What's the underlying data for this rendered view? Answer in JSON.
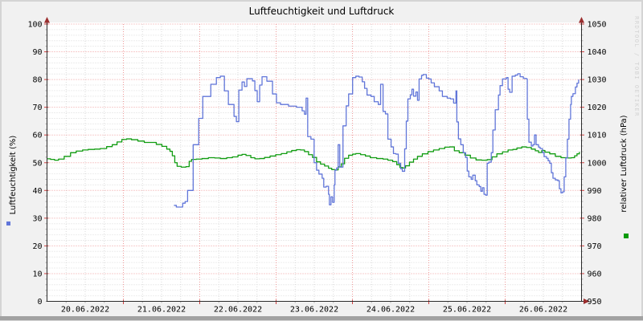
{
  "page": {
    "background_color": "#f1f1f1",
    "frame_color": "#d4d4d4",
    "bottom_bar_color": "#a2a2a2"
  },
  "watermark": "RRDTOOL / TOBI OETIKER",
  "legend": [
    {
      "series": "Luftfeuchtigkeit",
      "marker_color": "#6176d9",
      "position": "left-margin"
    },
    {
      "series": "relativer Luftdruck",
      "marker_color": "#0a9a0a",
      "position": "right-margin"
    }
  ],
  "chart_data": {
    "type": "line",
    "title": "Luftfeuchtigkeit und Luftdruck",
    "grid": {
      "major": true,
      "minor": true,
      "legend_position": "margins"
    },
    "colors": {
      "canvas": "#ffffff",
      "grid_minor": "#dadada",
      "grid_major": "#ef9a9a",
      "axis": "#2b2b2b",
      "arrow": "#9b2d2d",
      "tick_major": "#d04040",
      "tick_minor": "#b2b2b2",
      "text": "#000000"
    },
    "x_axis": {
      "labels": [
        "20.06.2022",
        "21.06.2022",
        "22.06.2022",
        "23.06.2022",
        "24.06.2022",
        "25.06.2022",
        "26.06.2022"
      ],
      "days": 7,
      "t_unit": "days since 20.06.2022 00:00",
      "major_tick_days": 1,
      "minor_tick_hours": 6
    },
    "y_left": {
      "label": "Luftfeuchtigkeit (%)",
      "min": 0,
      "max": 100,
      "tick_step": 10,
      "minor_step": 2,
      "ticks": [
        0,
        10,
        20,
        30,
        40,
        50,
        60,
        70,
        80,
        90,
        100
      ]
    },
    "y_right": {
      "label": "relativer Luftdruck (hPa)",
      "min": 950,
      "max": 1050,
      "tick_step": 10,
      "minor_step": 2,
      "ticks": [
        950,
        960,
        970,
        980,
        990,
        1000,
        1010,
        1020,
        1030,
        1040,
        1050
      ]
    },
    "series": [
      {
        "id": "luftfeuchtigkeit",
        "name": "Luftfeuchtigkeit",
        "axis": "left",
        "unit": "%",
        "color": "#6176d9",
        "points": [
          [
            1.662,
            34.6
          ],
          [
            1.694,
            34.0
          ],
          [
            1.777,
            35.4
          ],
          [
            1.809,
            36.0
          ],
          [
            1.841,
            40.0
          ],
          [
            1.914,
            56.5
          ],
          [
            1.987,
            66.0
          ],
          [
            2.04,
            73.9
          ],
          [
            2.145,
            78.3
          ],
          [
            2.218,
            80.7
          ],
          [
            2.27,
            81.2
          ],
          [
            2.323,
            75.9
          ],
          [
            2.375,
            71.0
          ],
          [
            2.449,
            66.7
          ],
          [
            2.48,
            64.8
          ],
          [
            2.512,
            76.2
          ],
          [
            2.554,
            79.1
          ],
          [
            2.585,
            77.5
          ],
          [
            2.617,
            80.3
          ],
          [
            2.69,
            79.5
          ],
          [
            2.722,
            76.0
          ],
          [
            2.753,
            72.0
          ],
          [
            2.785,
            78.0
          ],
          [
            2.816,
            81.0
          ],
          [
            2.879,
            79.4
          ],
          [
            2.953,
            74.8
          ],
          [
            3.005,
            71.6
          ],
          [
            3.058,
            71.0
          ],
          [
            3.163,
            70.4
          ],
          [
            3.267,
            70.0
          ],
          [
            3.341,
            68.7
          ],
          [
            3.372,
            67.5
          ],
          [
            3.393,
            73.3
          ],
          [
            3.414,
            59.4
          ],
          [
            3.456,
            58.5
          ],
          [
            3.498,
            50.0
          ],
          [
            3.53,
            47.3
          ],
          [
            3.561,
            45.9
          ],
          [
            3.603,
            44.4
          ],
          [
            3.624,
            41.2
          ],
          [
            3.656,
            41.5
          ],
          [
            3.687,
            38.6
          ],
          [
            3.698,
            34.8
          ],
          [
            3.719,
            37.7
          ],
          [
            3.74,
            35.7
          ],
          [
            3.761,
            42.0
          ],
          [
            3.771,
            47.3
          ],
          [
            3.792,
            48.1
          ],
          [
            3.813,
            56.5
          ],
          [
            3.834,
            48.4
          ],
          [
            3.876,
            63.3
          ],
          [
            3.918,
            70.5
          ],
          [
            3.95,
            74.8
          ],
          [
            4.002,
            80.7
          ],
          [
            4.044,
            81.2
          ],
          [
            4.086,
            80.9
          ],
          [
            4.128,
            79.2
          ],
          [
            4.159,
            76.8
          ],
          [
            4.191,
            74.4
          ],
          [
            4.243,
            73.9
          ],
          [
            4.285,
            72.0
          ],
          [
            4.338,
            71.0
          ],
          [
            4.369,
            78.3
          ],
          [
            4.401,
            68.5
          ],
          [
            4.432,
            67.6
          ],
          [
            4.464,
            58.5
          ],
          [
            4.506,
            55.7
          ],
          [
            4.537,
            53.3
          ],
          [
            4.569,
            53.1
          ],
          [
            4.6,
            49.8
          ],
          [
            4.632,
            47.8
          ],
          [
            4.653,
            46.9
          ],
          [
            4.684,
            55.0
          ],
          [
            4.705,
            65.0
          ],
          [
            4.726,
            73.0
          ],
          [
            4.758,
            74.5
          ],
          [
            4.779,
            76.5
          ],
          [
            4.8,
            74.0
          ],
          [
            4.831,
            75.5
          ],
          [
            4.852,
            72.5
          ],
          [
            4.873,
            80.2
          ],
          [
            4.905,
            81.5
          ],
          [
            4.926,
            81.8
          ],
          [
            4.968,
            80.5
          ],
          [
            5.0,
            80.2
          ],
          [
            5.031,
            78.8
          ],
          [
            5.073,
            77.4
          ],
          [
            5.105,
            77.4
          ],
          [
            5.136,
            75.9
          ],
          [
            5.178,
            73.9
          ],
          [
            5.241,
            73.3
          ],
          [
            5.283,
            73.0
          ],
          [
            5.325,
            71.5
          ],
          [
            5.356,
            75.9
          ],
          [
            5.367,
            64.7
          ],
          [
            5.388,
            58.6
          ],
          [
            5.419,
            56.5
          ],
          [
            5.451,
            53.6
          ],
          [
            5.482,
            51.9
          ],
          [
            5.503,
            47.0
          ],
          [
            5.524,
            44.9
          ],
          [
            5.555,
            44.0
          ],
          [
            5.576,
            45.5
          ],
          [
            5.608,
            43.5
          ],
          [
            5.629,
            42.0
          ],
          [
            5.66,
            41.4
          ],
          [
            5.681,
            39.7
          ],
          [
            5.702,
            41.0
          ],
          [
            5.723,
            38.6
          ],
          [
            5.744,
            38.3
          ],
          [
            5.765,
            49.8
          ],
          [
            5.786,
            50.2
          ],
          [
            5.818,
            53.6
          ],
          [
            5.839,
            61.8
          ],
          [
            5.87,
            69.1
          ],
          [
            5.912,
            74.4
          ],
          [
            5.933,
            77.8
          ],
          [
            5.965,
            80.2
          ],
          [
            6.017,
            80.7
          ],
          [
            6.038,
            76.5
          ],
          [
            6.059,
            75.4
          ],
          [
            6.091,
            81.2
          ],
          [
            6.133,
            81.6
          ],
          [
            6.164,
            82.1
          ],
          [
            6.196,
            81.0
          ],
          [
            6.238,
            80.4
          ],
          [
            6.279,
            80.2
          ],
          [
            6.29,
            65.7
          ],
          [
            6.311,
            57.4
          ],
          [
            6.343,
            56.0
          ],
          [
            6.364,
            56.5
          ],
          [
            6.384,
            60.0
          ],
          [
            6.405,
            56.5
          ],
          [
            6.437,
            55.6
          ],
          [
            6.458,
            55.1
          ],
          [
            6.489,
            53.6
          ],
          [
            6.51,
            52.2
          ],
          [
            6.542,
            51.6
          ],
          [
            6.563,
            50.7
          ],
          [
            6.584,
            49.8
          ],
          [
            6.605,
            46.4
          ],
          [
            6.626,
            44.4
          ],
          [
            6.657,
            43.8
          ],
          [
            6.689,
            43.5
          ],
          [
            6.71,
            40.6
          ],
          [
            6.731,
            39.1
          ],
          [
            6.752,
            39.5
          ],
          [
            6.773,
            44.9
          ],
          [
            6.794,
            51.7
          ],
          [
            6.815,
            58.5
          ],
          [
            6.836,
            65.7
          ],
          [
            6.857,
            71.0
          ],
          [
            6.867,
            73.9
          ],
          [
            6.888,
            74.9
          ],
          [
            6.92,
            77.3
          ],
          [
            6.941,
            78.7
          ],
          [
            6.962,
            80.0
          ]
        ]
      },
      {
        "id": "luftdruck",
        "name": "relativer Luftdruck",
        "axis": "right",
        "unit": "hPa",
        "color": "#109c10",
        "points": [
          [
            0.0,
            1001.4
          ],
          [
            0.046,
            1001.2
          ],
          [
            0.099,
            1000.9
          ],
          [
            0.151,
            1001.3
          ],
          [
            0.225,
            1002.3
          ],
          [
            0.308,
            1003.6
          ],
          [
            0.382,
            1004.2
          ],
          [
            0.466,
            1004.6
          ],
          [
            0.539,
            1004.8
          ],
          [
            0.623,
            1004.9
          ],
          [
            0.697,
            1005.1
          ],
          [
            0.781,
            1005.8
          ],
          [
            0.854,
            1006.5
          ],
          [
            0.917,
            1007.5
          ],
          [
            0.98,
            1008.4
          ],
          [
            1.043,
            1008.6
          ],
          [
            1.106,
            1008.3
          ],
          [
            1.19,
            1007.8
          ],
          [
            1.274,
            1007.3
          ],
          [
            1.358,
            1007.3
          ],
          [
            1.431,
            1006.6
          ],
          [
            1.505,
            1005.9
          ],
          [
            1.568,
            1004.9
          ],
          [
            1.61,
            1004.1
          ],
          [
            1.641,
            1002.5
          ],
          [
            1.673,
            1000.0
          ],
          [
            1.704,
            998.7
          ],
          [
            1.757,
            998.4
          ],
          [
            1.82,
            998.6
          ],
          [
            1.862,
            1000.5
          ],
          [
            1.893,
            1001.2
          ],
          [
            1.956,
            1001.3
          ],
          [
            2.03,
            1001.5
          ],
          [
            2.113,
            1001.8
          ],
          [
            2.197,
            1001.7
          ],
          [
            2.27,
            1001.5
          ],
          [
            2.354,
            1001.8
          ],
          [
            2.428,
            1002.1
          ],
          [
            2.501,
            1002.7
          ],
          [
            2.554,
            1003.0
          ],
          [
            2.606,
            1002.6
          ],
          [
            2.669,
            1001.8
          ],
          [
            2.722,
            1001.4
          ],
          [
            2.785,
            1001.5
          ],
          [
            2.848,
            1001.9
          ],
          [
            2.921,
            1002.4
          ],
          [
            2.995,
            1002.9
          ],
          [
            3.068,
            1003.3
          ],
          [
            3.141,
            1003.9
          ],
          [
            3.204,
            1004.4
          ],
          [
            3.267,
            1004.7
          ],
          [
            3.32,
            1004.6
          ],
          [
            3.372,
            1004.0
          ],
          [
            3.425,
            1002.9
          ],
          [
            3.477,
            1001.9
          ],
          [
            3.53,
            1000.3
          ],
          [
            3.582,
            999.5
          ],
          [
            3.635,
            998.8
          ],
          [
            3.687,
            998.0
          ],
          [
            3.729,
            997.5
          ],
          [
            3.771,
            997.4
          ],
          [
            3.813,
            998.5
          ],
          [
            3.855,
            999.6
          ],
          [
            3.897,
            1001.6
          ],
          [
            3.95,
            1002.7
          ],
          [
            4.002,
            1003.1
          ],
          [
            4.044,
            1003.3
          ],
          [
            4.107,
            1002.9
          ],
          [
            4.17,
            1002.4
          ],
          [
            4.233,
            1001.8
          ],
          [
            4.317,
            1001.5
          ],
          [
            4.401,
            1001.3
          ],
          [
            4.464,
            1000.9
          ],
          [
            4.527,
            1000.4
          ],
          [
            4.58,
            999.3
          ],
          [
            4.621,
            998.3
          ],
          [
            4.653,
            998.1
          ],
          [
            4.695,
            998.9
          ],
          [
            4.747,
            1000.2
          ],
          [
            4.8,
            1001.3
          ],
          [
            4.852,
            1002.3
          ],
          [
            4.915,
            1003.2
          ],
          [
            4.989,
            1004.0
          ],
          [
            5.062,
            1004.6
          ],
          [
            5.136,
            1005.1
          ],
          [
            5.209,
            1005.6
          ],
          [
            5.272,
            1005.7
          ],
          [
            5.335,
            1004.3
          ],
          [
            5.398,
            1003.6
          ],
          [
            5.472,
            1002.7
          ],
          [
            5.545,
            1001.7
          ],
          [
            5.618,
            1001.0
          ],
          [
            5.692,
            1000.9
          ],
          [
            5.765,
            1001.1
          ],
          [
            5.828,
            1002.1
          ],
          [
            5.891,
            1003.2
          ],
          [
            5.965,
            1003.9
          ],
          [
            6.038,
            1004.6
          ],
          [
            6.101,
            1004.8
          ],
          [
            6.154,
            1005.3
          ],
          [
            6.217,
            1005.7
          ],
          [
            6.279,
            1005.5
          ],
          [
            6.343,
            1004.9
          ],
          [
            6.395,
            1004.3
          ],
          [
            6.437,
            1003.7
          ],
          [
            6.479,
            1004.4
          ],
          [
            6.521,
            1003.8
          ],
          [
            6.584,
            1003.2
          ],
          [
            6.657,
            1002.3
          ],
          [
            6.731,
            1001.8
          ],
          [
            6.804,
            1001.7
          ],
          [
            6.867,
            1001.8
          ],
          [
            6.909,
            1002.5
          ],
          [
            6.941,
            1003.2
          ],
          [
            6.972,
            1003.9
          ]
        ]
      }
    ]
  }
}
